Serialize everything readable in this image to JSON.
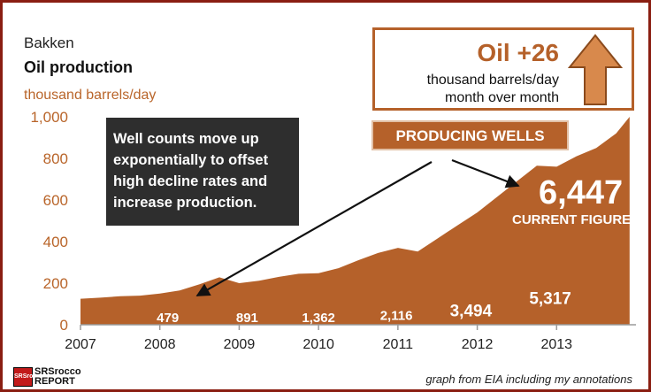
{
  "header": {
    "region": "Bakken",
    "title": "Oil production",
    "unit": "thousand barrels/day"
  },
  "mom_box": {
    "main": "Oil +26",
    "line1": "thousand barrels/day",
    "line2": "month over month",
    "arrow_icon": "up-arrow-icon"
  },
  "callout": {
    "text": "Well counts move up exponentially to offset high decline rates and increase production."
  },
  "producing_wells": {
    "label": "PRODUCING WELLS",
    "current_value": "6,447",
    "current_label": "CURRENT FIGURE"
  },
  "source": "graph from EIA including my annotations",
  "logo": {
    "badge": "SRSrocco",
    "line1": "SRSrocco",
    "line2": "REPORT"
  },
  "colors": {
    "area": "#b5612a",
    "axis_text": "#b9652a",
    "frame": "#8a1e12",
    "callout_bg": "#2e2e2e"
  },
  "chart_data": {
    "type": "area",
    "title": "Oil production",
    "ylabel": "thousand barrels/day",
    "xlim": [
      2007,
      2014
    ],
    "ylim": [
      0,
      1000
    ],
    "x_ticks": [
      2007,
      2008,
      2009,
      2010,
      2011,
      2012,
      2013
    ],
    "x_tick_labels": [
      "2007",
      "2008",
      "2009",
      "2010",
      "2011",
      "2012",
      "2013"
    ],
    "y_ticks": [
      0,
      200,
      400,
      600,
      800,
      1000
    ],
    "y_tick_labels": [
      "0",
      "200",
      "400",
      "600",
      "800",
      "1,000"
    ],
    "grid": false,
    "series": [
      {
        "x": [
          2007.0,
          2007.25,
          2007.5,
          2007.75,
          2008.0,
          2008.25,
          2008.5,
          2008.75,
          2009.0,
          2009.25,
          2009.5,
          2009.75,
          2010.0,
          2010.25,
          2010.5,
          2010.75,
          2011.0,
          2011.25,
          2011.5,
          2011.75,
          2012.0,
          2012.25,
          2012.5,
          2012.75,
          2013.0,
          2013.25,
          2013.5,
          2013.75,
          2013.92
        ],
        "values": [
          125,
          130,
          137,
          140,
          150,
          165,
          195,
          228,
          200,
          212,
          230,
          245,
          248,
          272,
          310,
          345,
          370,
          352,
          415,
          478,
          540,
          615,
          690,
          765,
          760,
          810,
          850,
          920,
          1000
        ]
      }
    ],
    "well_annotations": [
      {
        "x": 2008.1,
        "y": 38,
        "label": "479"
      },
      {
        "x": 2009.1,
        "y": 38,
        "label": "891"
      },
      {
        "x": 2010.0,
        "y": 38,
        "label": "1,362"
      },
      {
        "x": 2010.98,
        "y": 48,
        "label": "2,116"
      },
      {
        "x": 2011.92,
        "y": 65,
        "label": "3,494"
      },
      {
        "x": 2012.92,
        "y": 125,
        "label": "5,317"
      }
    ]
  }
}
